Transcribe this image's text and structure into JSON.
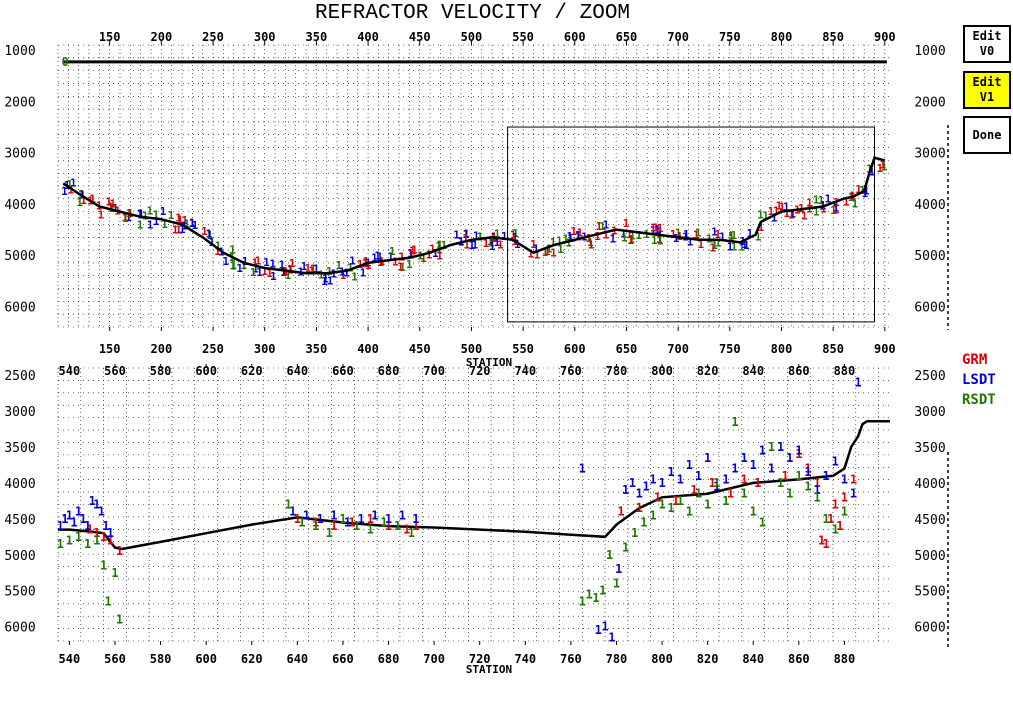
{
  "title": "REFRACTOR VELOCITY / ZOOM",
  "buttons": [
    {
      "label": "Edit\nV0",
      "active": false
    },
    {
      "label": "Edit\nV1",
      "active": true
    },
    {
      "label": "Done",
      "active": false
    }
  ],
  "legend": [
    {
      "name": "GRM",
      "color": "#dd0000"
    },
    {
      "name": "LSDT",
      "color": "#0000dd"
    },
    {
      "name": "RSDT",
      "color": "#227700"
    }
  ],
  "point_marker": "1",
  "chart_data": [
    {
      "type": "scatter",
      "name": "overview",
      "xlabel": "STATION",
      "ylabel": "",
      "xlim": [
        100,
        905
      ],
      "ylim": [
        6400,
        900
      ],
      "y_inverted": true,
      "xticks": [
        150,
        200,
        250,
        300,
        350,
        400,
        450,
        500,
        550,
        600,
        650,
        700,
        750,
        800,
        850,
        900
      ],
      "yticks": [
        1000,
        2000,
        3000,
        4000,
        5000,
        6000
      ],
      "grid": true,
      "zoom_box": {
        "x": [
          535,
          890
        ],
        "y": [
          2500,
          6300
        ]
      },
      "v0": {
        "x": [
          105,
          902
        ],
        "y": [
          1230,
          1230
        ],
        "label": "0"
      },
      "v1_line": {
        "x": [
          105,
          120,
          140,
          160,
          180,
          200,
          220,
          240,
          260,
          280,
          300,
          320,
          340,
          360,
          380,
          400,
          420,
          440,
          460,
          480,
          500,
          520,
          540,
          560,
          580,
          600,
          620,
          640,
          660,
          680,
          700,
          720,
          740,
          760,
          775,
          780,
          790,
          800,
          820,
          840,
          860,
          870,
          880,
          885,
          890,
          900
        ],
        "y": [
          3600,
          3800,
          4050,
          4150,
          4250,
          4300,
          4400,
          4650,
          4950,
          5150,
          5250,
          5300,
          5350,
          5350,
          5300,
          5150,
          5100,
          5050,
          4950,
          4800,
          4700,
          4650,
          4700,
          4950,
          4800,
          4700,
          4600,
          4500,
          4550,
          4600,
          4650,
          4700,
          4700,
          4750,
          4600,
          4350,
          4250,
          4150,
          4100,
          4050,
          3900,
          3850,
          3750,
          3400,
          3100,
          3150
        ]
      }
    },
    {
      "type": "scatter",
      "name": "zoom",
      "xlabel": "STATION",
      "ylabel": "",
      "xlim": [
        535,
        900
      ],
      "ylim": [
        6200,
        2400
      ],
      "y_inverted": true,
      "xticks": [
        540,
        560,
        580,
        600,
        620,
        640,
        660,
        680,
        700,
        720,
        740,
        760,
        780,
        800,
        820,
        840,
        860,
        880
      ],
      "yticks": [
        2500,
        3000,
        3500,
        4000,
        4500,
        5000,
        5500,
        6000
      ],
      "grid": true,
      "v1_line": {
        "x": [
          535,
          540,
          550,
          555,
          560,
          563,
          580,
          600,
          620,
          640,
          660,
          680,
          700,
          720,
          740,
          760,
          775,
          778,
          780,
          790,
          800,
          820,
          840,
          860,
          875,
          880,
          883,
          886,
          888,
          890,
          900
        ],
        "y": [
          4650,
          4650,
          4680,
          4700,
          4900,
          4920,
          4820,
          4700,
          4580,
          4480,
          4550,
          4600,
          4620,
          4650,
          4680,
          4720,
          4750,
          4650,
          4580,
          4350,
          4200,
          4150,
          4000,
          3950,
          3900,
          3800,
          3500,
          3350,
          3180,
          3140,
          3140
        ]
      },
      "series": [
        {
          "name": "GRM",
          "color": "#dd0000",
          "x": [
            549,
            552,
            555,
            558,
            562,
            640,
            648,
            656,
            664,
            672,
            680,
            688,
            692,
            782,
            790,
            798,
            806,
            814,
            822,
            830,
            836,
            842,
            848,
            854,
            860,
            864,
            868,
            870,
            872,
            874,
            876,
            878,
            880,
            884
          ],
          "y": [
            4650,
            4700,
            4750,
            4800,
            4950,
            4500,
            4550,
            4600,
            4550,
            4500,
            4600,
            4650,
            4600,
            4400,
            4350,
            4200,
            4250,
            4100,
            4000,
            4150,
            3950,
            4000,
            3800,
            3900,
            3600,
            3800,
            4000,
            4800,
            4850,
            4500,
            4300,
            4600,
            4200,
            3950
          ]
        },
        {
          "name": "LSDT",
          "color": "#0000dd",
          "x": [
            536,
            538,
            540,
            542,
            544,
            546,
            548,
            550,
            552,
            554,
            556,
            558,
            638,
            644,
            650,
            656,
            662,
            668,
            674,
            680,
            686,
            692,
            765,
            772,
            775,
            778,
            781,
            784,
            787,
            790,
            793,
            796,
            800,
            804,
            808,
            812,
            816,
            820,
            824,
            828,
            832,
            836,
            840,
            844,
            848,
            852,
            856,
            860,
            864,
            868,
            872,
            876,
            880,
            884,
            886
          ],
          "y": [
            4600,
            4500,
            4450,
            4550,
            4400,
            4500,
            4600,
            4250,
            4300,
            4400,
            4600,
            4700,
            4400,
            4450,
            4500,
            4450,
            4550,
            4500,
            4450,
            4500,
            4450,
            4500,
            3800,
            6050,
            6000,
            6150,
            5200,
            4100,
            4000,
            4150,
            4050,
            3950,
            4000,
            3850,
            3950,
            3750,
            3900,
            3650,
            4050,
            3950,
            3800,
            3650,
            3750,
            3550,
            3800,
            3500,
            3650,
            3550,
            3850,
            4100,
            3900,
            3700,
            3950,
            4150,
            2600
          ]
        },
        {
          "name": "RSDT",
          "color": "#227700",
          "x": [
            536,
            540,
            544,
            548,
            552,
            555,
            557,
            560,
            562,
            636,
            642,
            648,
            654,
            660,
            666,
            672,
            678,
            684,
            690,
            765,
            768,
            771,
            774,
            777,
            780,
            784,
            788,
            792,
            796,
            800,
            804,
            808,
            812,
            816,
            820,
            824,
            828,
            832,
            836,
            840,
            844,
            848,
            852,
            856,
            860,
            864,
            868,
            872,
            876,
            880
          ],
          "y": [
            4850,
            4800,
            4750,
            4850,
            4800,
            5150,
            5650,
            5250,
            5900,
            4300,
            4550,
            4600,
            4700,
            4500,
            4600,
            4650,
            4550,
            4600,
            4700,
            5650,
            5550,
            5600,
            5500,
            5000,
            5400,
            4900,
            4700,
            4550,
            4450,
            4300,
            4350,
            4250,
            4400,
            4150,
            4300,
            4000,
            4250,
            3150,
            4150,
            4400,
            4550,
            3500,
            4000,
            4150,
            3900,
            4050,
            4200,
            4500,
            4650,
            4400
          ]
        }
      ]
    }
  ]
}
